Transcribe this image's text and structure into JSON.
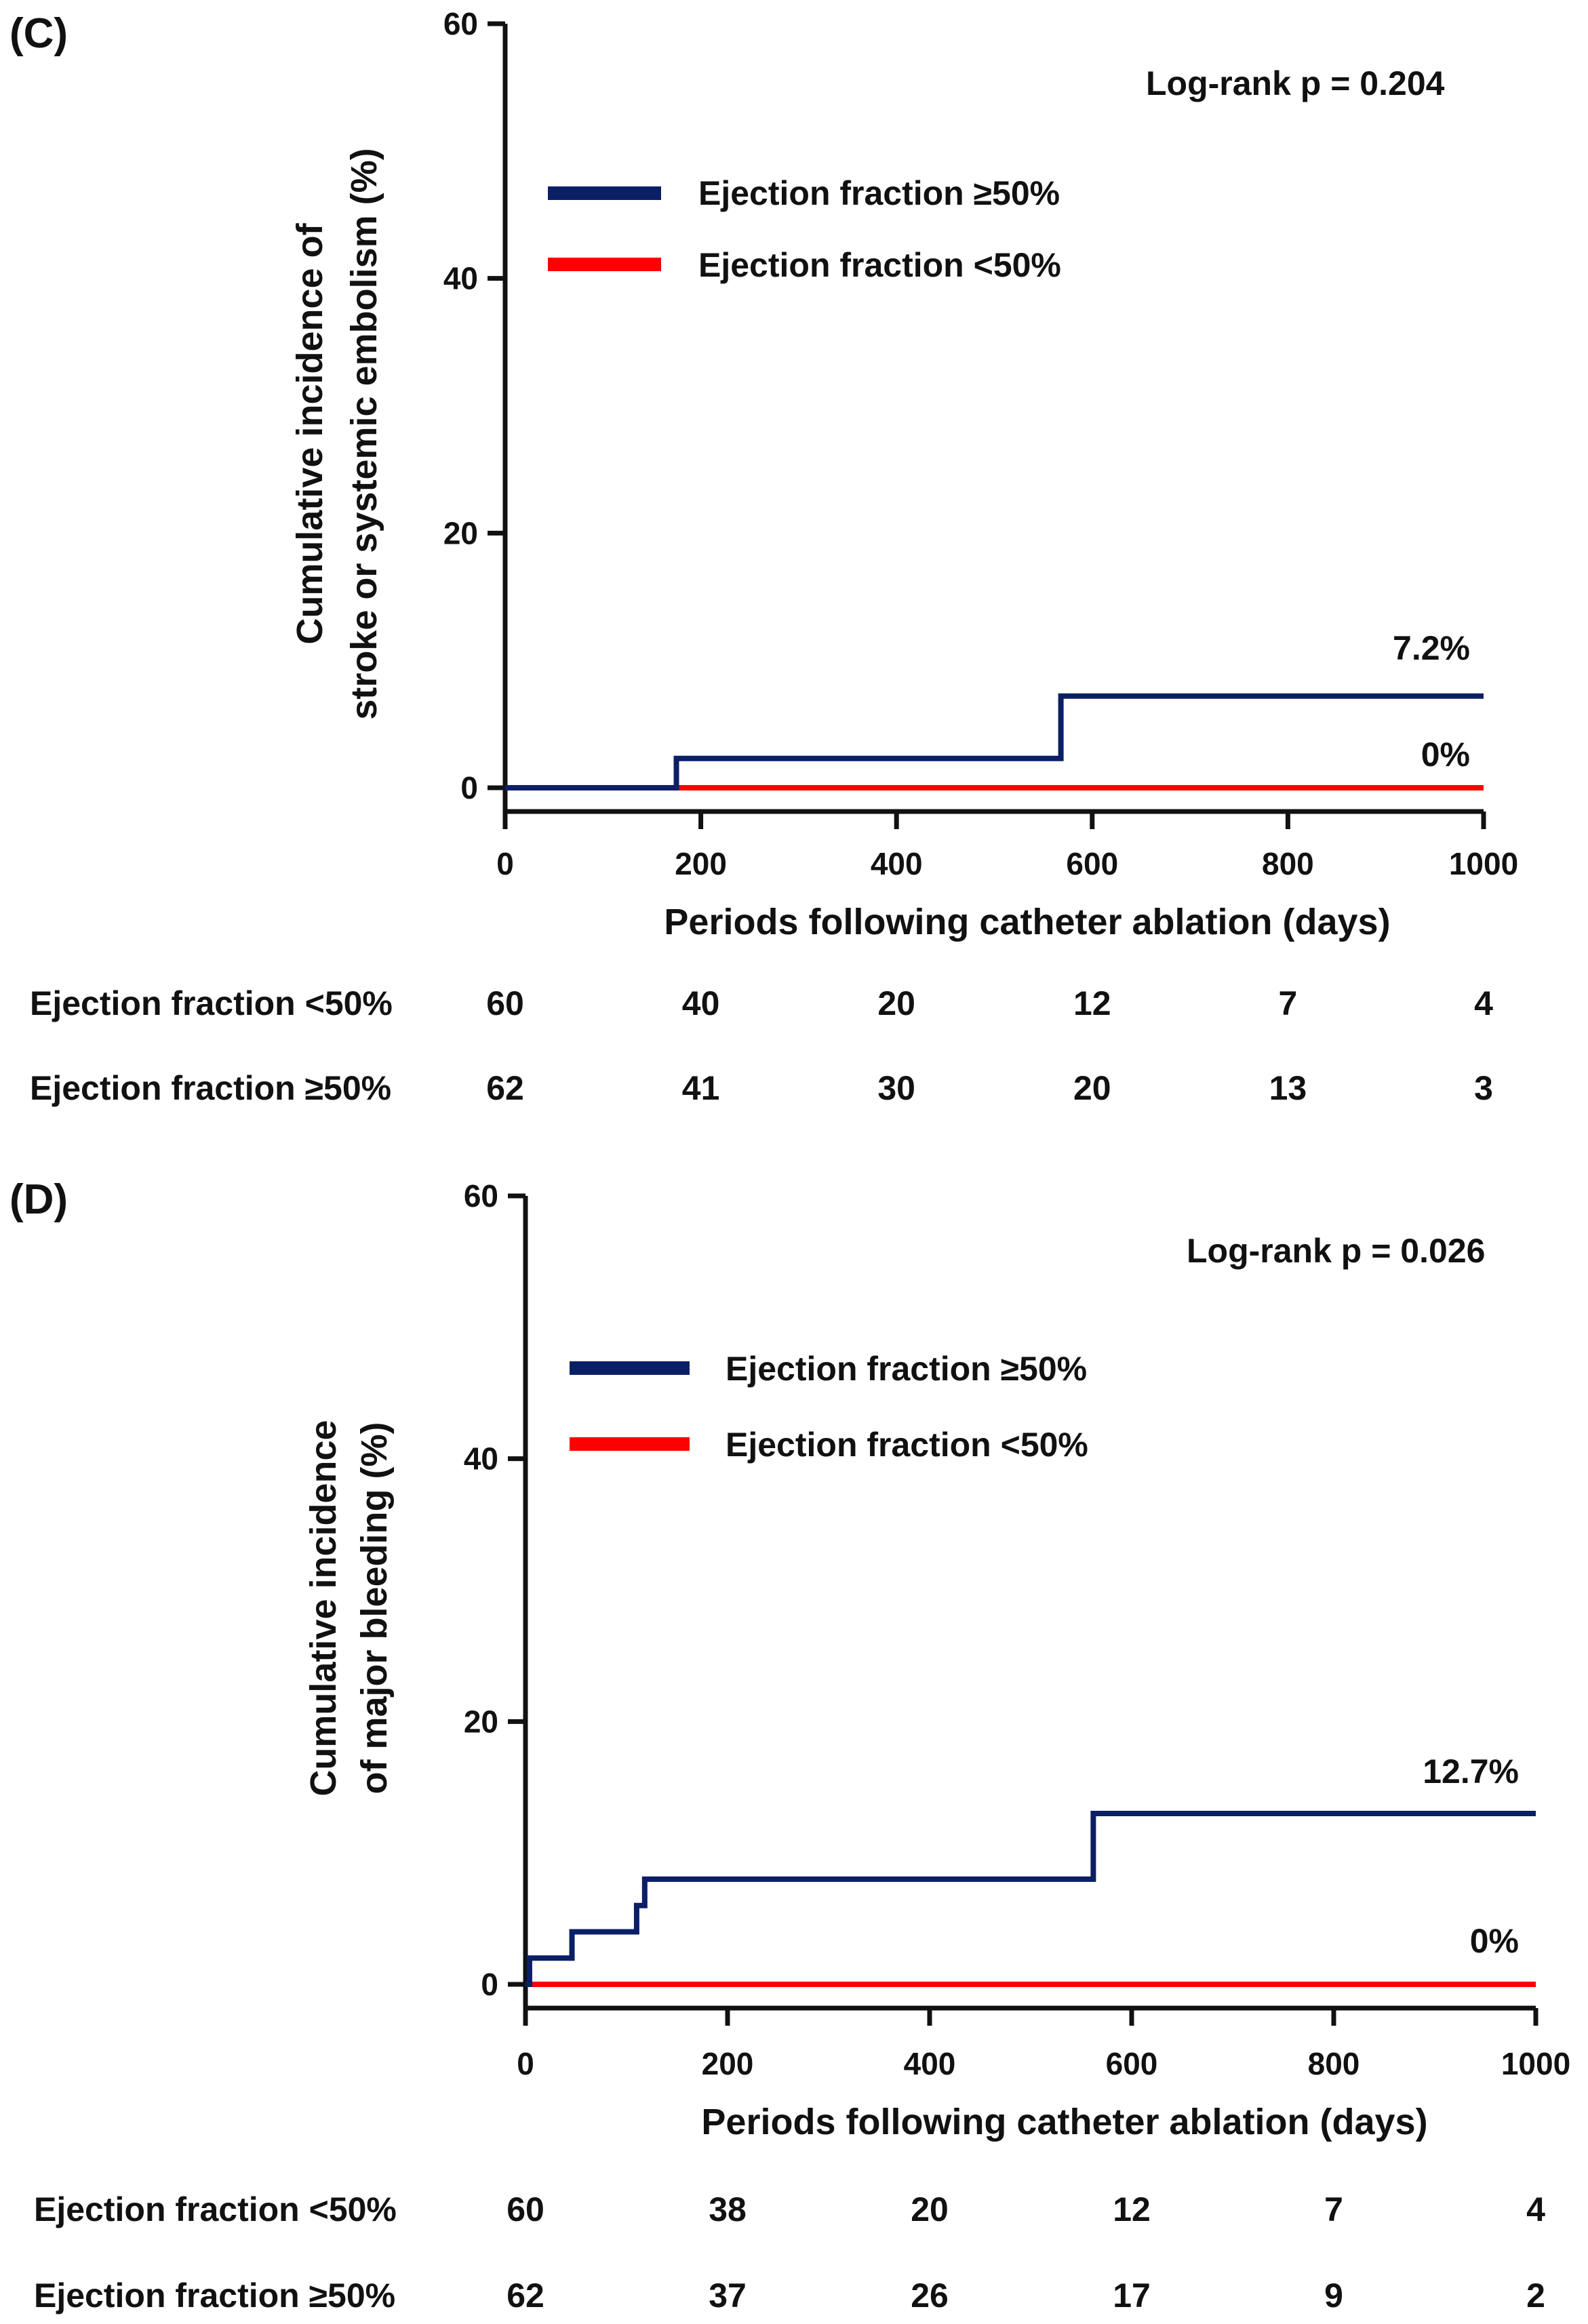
{
  "colors": {
    "ef_ge50": "#0b1f66",
    "ef_lt50": "#ff0000",
    "axis": "#111111"
  },
  "chart_data": [
    {
      "type": "line",
      "panel_label": "(C)",
      "title": "",
      "xlabel": "Periods following catheter ablation (days)",
      "ylabel_lines": [
        "Cumulative incidence of",
        "stroke or systemic embolism (%)"
      ],
      "xlim": [
        0,
        1000
      ],
      "ylim": [
        0,
        60
      ],
      "xticks": [
        0,
        200,
        400,
        600,
        800,
        1000
      ],
      "yticks": [
        0,
        20,
        40,
        60
      ],
      "pvalue_text": "Log-rank p = 0.204",
      "legend": [
        "Ejection fraction ≥50%",
        "Ejection fraction <50%"
      ],
      "series": [
        {
          "name": "Ejection fraction ≥50%",
          "color": "#0b1f66",
          "step_x": [
            0,
            175,
            175,
            568,
            568,
            1000
          ],
          "step_y": [
            0,
            0,
            2.3,
            2.3,
            7.2,
            7.2
          ],
          "end_label": "7.2%"
        },
        {
          "name": "Ejection fraction <50%",
          "color": "#ff0000",
          "step_x": [
            175,
            1000
          ],
          "step_y": [
            0,
            0
          ],
          "end_label": "0%"
        }
      ],
      "risk_table": {
        "times": [
          0,
          200,
          400,
          600,
          800,
          1000
        ],
        "rows": [
          {
            "label": "Ejection fraction <50%",
            "values": [
              60,
              40,
              20,
              12,
              7,
              4
            ]
          },
          {
            "label": "Ejection fraction ≥50%",
            "values": [
              62,
              41,
              30,
              20,
              13,
              3
            ]
          }
        ]
      }
    },
    {
      "type": "line",
      "panel_label": "(D)",
      "title": "",
      "xlabel": "Periods following catheter ablation (days)",
      "ylabel_lines": [
        "Cumulative incidence",
        "of major bleeding (%)"
      ],
      "xlim": [
        0,
        1000
      ],
      "ylim": [
        0,
        60
      ],
      "xticks": [
        0,
        200,
        400,
        600,
        800,
        1000
      ],
      "yticks": [
        0,
        20,
        40,
        60
      ],
      "pvalue_text": "Log-rank p = 0.026",
      "legend": [
        "Ejection fraction ≥50%",
        "Ejection fraction <50%"
      ],
      "series": [
        {
          "name": "Ejection fraction ≥50%",
          "color": "#0b1f66",
          "step_x": [
            0,
            4,
            4,
            46,
            46,
            110,
            110,
            118,
            118,
            562,
            562,
            1000
          ],
          "step_y": [
            0,
            0,
            2,
            2,
            4,
            4,
            6,
            6,
            8,
            8,
            13,
            13
          ],
          "end_label": "12.7%"
        },
        {
          "name": "Ejection fraction <50%",
          "color": "#ff0000",
          "step_x": [
            0,
            1000
          ],
          "step_y": [
            0,
            0
          ],
          "end_label": "0%"
        }
      ],
      "risk_table": {
        "times": [
          0,
          200,
          400,
          600,
          800,
          1000
        ],
        "rows": [
          {
            "label": "Ejection fraction <50%",
            "values": [
              60,
              38,
              20,
              12,
              7,
              4
            ]
          },
          {
            "label": "Ejection fraction ≥50%",
            "values": [
              62,
              37,
              26,
              17,
              9,
              2
            ]
          }
        ]
      }
    }
  ]
}
